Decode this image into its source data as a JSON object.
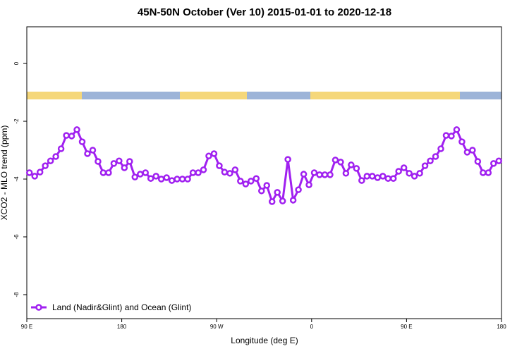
{
  "chart_data": {
    "type": "line",
    "title": "45N-50N October (Ver 10)   2015-01-01 to 2020-12-18",
    "x_label": "Longitude (deg E)",
    "y_label": "XCO2 - MLO trend (ppm)",
    "x": [
      92.5,
      97.5,
      102.5,
      107.5,
      112.5,
      117.5,
      122.5,
      127.5,
      132.5,
      137.5,
      142.5,
      147.5,
      152.5,
      157.5,
      162.5,
      167.5,
      172.5,
      177.5,
      182.5,
      187.5,
      192.5,
      197.5,
      202.5,
      207.5,
      212.5,
      217.5,
      222.5,
      227.5,
      232.5,
      237.5,
      242.5,
      247.5,
      252.5,
      257.5,
      262.5,
      267.5,
      272.5,
      277.5,
      282.5,
      287.5,
      292.5,
      297.5,
      302.5,
      307.5,
      312.5,
      317.5,
      322.5,
      327.5,
      332.5,
      337.5,
      342.5,
      347.5,
      352.5,
      357.5,
      362.5,
      367.5,
      372.5,
      377.5,
      382.5,
      387.5,
      392.5,
      397.5,
      402.5,
      407.5,
      412.5,
      417.5,
      422.5,
      427.5,
      432.5,
      437.5,
      442.5,
      447.5,
      452.5,
      457.5,
      462.5,
      467.5,
      472.5,
      477.5,
      482.5,
      487.5,
      492.5,
      497.5,
      502.5,
      507.5,
      512.5,
      517.5,
      522.5,
      527.5,
      532.5,
      537.5
    ],
    "series": [
      {
        "name": "Land (Nadir&Glint) and Ocean (Glint)",
        "color": "#a020f0",
        "values": [
          -3.78,
          -3.9,
          -3.76,
          -3.54,
          -3.37,
          -3.22,
          -2.95,
          -2.49,
          -2.51,
          -2.29,
          -2.71,
          -3.12,
          -3.0,
          -3.39,
          -3.78,
          -3.78,
          -3.46,
          -3.37,
          -3.61,
          -3.39,
          -3.93,
          -3.83,
          -3.78,
          -3.98,
          -3.9,
          -4.0,
          -3.95,
          -4.05,
          -4.0,
          -4.0,
          -4.0,
          -3.78,
          -3.78,
          -3.68,
          -3.2,
          -3.12,
          -3.54,
          -3.76,
          -3.8,
          -3.68,
          -4.07,
          -4.17,
          -4.07,
          -3.98,
          -4.41,
          -4.22,
          -4.78,
          -4.46,
          -4.76,
          -3.32,
          -4.73,
          -4.37,
          -3.83,
          -4.2,
          -3.78,
          -3.85,
          -3.85,
          -3.85,
          -3.34,
          -3.41,
          -3.8,
          -3.51,
          -3.63,
          -4.05,
          -3.9,
          -3.9,
          -3.95,
          -3.9,
          -3.98,
          -3.98,
          -3.73,
          -3.61,
          -3.8,
          -3.9,
          -3.8,
          -3.54,
          -3.37,
          -3.22,
          -2.95,
          -2.49,
          -2.51,
          -2.29,
          -2.71,
          -3.07,
          -3.0,
          -3.39,
          -3.78,
          -3.78,
          -3.46,
          -3.37
        ]
      }
    ],
    "xlim": [
      90,
      540
    ],
    "xticks": [
      {
        "value": 90,
        "label": "90 E"
      },
      {
        "value": 180,
        "label": "180"
      },
      {
        "value": 270,
        "label": "90 W"
      },
      {
        "value": 360,
        "label": "0"
      },
      {
        "value": 450,
        "label": "90 E"
      },
      {
        "value": 540,
        "label": "180"
      }
    ],
    "ylim": [
      -8.83,
      1.27
    ],
    "yticks": [
      0,
      -2,
      -4,
      -6,
      -8
    ],
    "legend": "bottom-left"
  }
}
